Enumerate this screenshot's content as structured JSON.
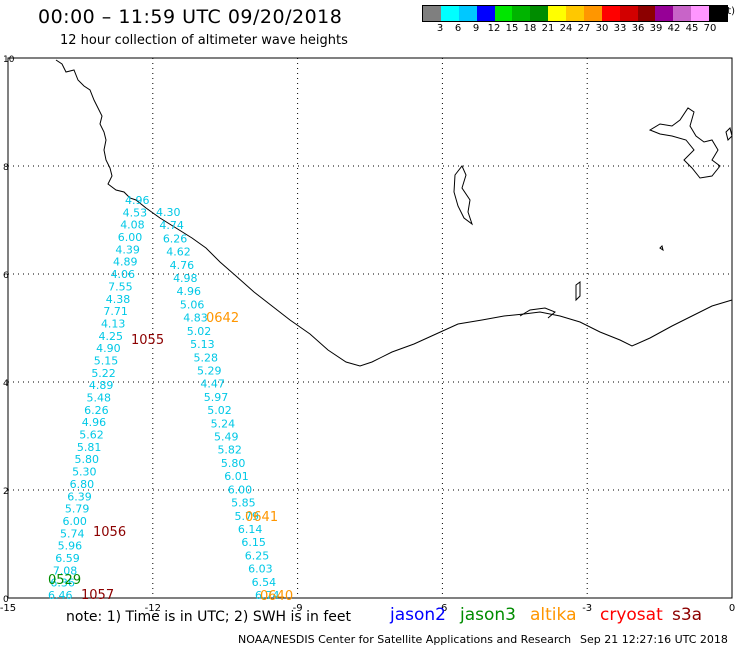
{
  "header": {
    "title": "00:00 – 11:59 UTC 09/20/2018",
    "subtitle": "12 hour collection of altimeter wave heights"
  },
  "legend": {
    "colors": [
      "#7f7f7f",
      "#00ffff",
      "#00c8ff",
      "#0000ff",
      "#00e600",
      "#00b400",
      "#008c00",
      "#ffff00",
      "#ffc800",
      "#ff9600",
      "#ff0000",
      "#d20000",
      "#8c0000",
      "#960096",
      "#c864c8",
      "#ff96ff",
      "#000000"
    ],
    "labels": [
      "3",
      "6",
      "9",
      "12",
      "15",
      "18",
      "21",
      "24",
      "27",
      "30",
      "33",
      "36",
      "39",
      "42",
      "45",
      "70"
    ],
    "unit": "(ft)"
  },
  "axes": {
    "x_ticks": [
      "-15",
      "-12",
      "-9",
      "-6",
      "-3",
      "0"
    ],
    "y_ticks": [
      "0",
      "2",
      "4",
      "6",
      "8",
      "10"
    ]
  },
  "track_left": {
    "color": "#00c8e6",
    "values": [
      "4.96",
      "4.53",
      "4.08",
      "6.00",
      "4.39",
      "4.89",
      "4.06",
      "7.55",
      "4.38",
      "7.71",
      "4.13",
      "4.25",
      "4.90",
      "5.15",
      "5.22",
      "4.89",
      "5.48",
      "6.26",
      "4.96",
      "5.62",
      "5.81",
      "5.80",
      "5.30",
      "6.80",
      "6.39",
      "5.79",
      "6.00",
      "5.74",
      "5.96",
      "6.59",
      "7.08",
      "6.36",
      "6.46"
    ]
  },
  "track_right": {
    "color": "#00c8e6",
    "values": [
      "4.30",
      "4.74",
      "6.26",
      "4.62",
      "4.76",
      "4.98",
      "4.96",
      "5.06",
      "4.83",
      "5.02",
      "5.13",
      "5.28",
      "5.29",
      "4.47",
      "5.97",
      "5.02",
      "5.24",
      "5.49",
      "5.82",
      "5.80",
      "6.01",
      "6.00",
      "5.85",
      "5.79",
      "6.14",
      "6.15",
      "6.25",
      "6.03",
      "6.54",
      "6.74"
    ]
  },
  "time_labels": [
    {
      "text": "1055",
      "color": "#8c0000"
    },
    {
      "text": "1056",
      "color": "#8c0000"
    },
    {
      "text": "1057",
      "color": "#8c0000"
    },
    {
      "text": "0529",
      "color": "#008c00"
    },
    {
      "text": "0642",
      "color": "#ff9600"
    },
    {
      "text": "0641",
      "color": "#ff9600"
    },
    {
      "text": "0640",
      "color": "#ff9600"
    }
  ],
  "footer": {
    "note": "note:  1) Time is in UTC;  2) SWH is in feet",
    "satellites": [
      {
        "name": "jason2",
        "color": "#0000ff"
      },
      {
        "name": "jason3",
        "color": "#008c00"
      },
      {
        "name": "altika",
        "color": "#ff9600"
      },
      {
        "name": "cryosat",
        "color": "#ff0000"
      },
      {
        "name": "s3a",
        "color": "#8c0000"
      }
    ],
    "credit": "NOAA/NESDIS Center for Satellite Applications and Research",
    "timestamp": "Sep 21 12:27:16 UTC 2018"
  }
}
